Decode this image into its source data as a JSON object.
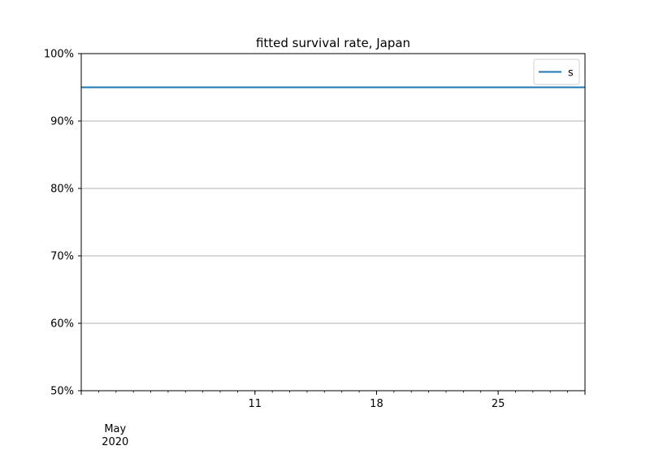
{
  "chart_data": {
    "type": "line",
    "title": "fitted survival rate, Japan",
    "xlabel": "",
    "ylabel": "",
    "x_range": [
      "2020-05-01",
      "2020-05-30"
    ],
    "ylim": [
      0.5,
      1.0
    ],
    "y_ticks": [
      {
        "value": 0.5,
        "label": "50%"
      },
      {
        "value": 0.6,
        "label": "60%"
      },
      {
        "value": 0.7,
        "label": "70%"
      },
      {
        "value": 0.8,
        "label": "80%"
      },
      {
        "value": 0.9,
        "label": "90%"
      },
      {
        "value": 1.0,
        "label": "100%"
      }
    ],
    "x_major_ticks": [
      {
        "date": "2020-05-11",
        "label": "11"
      },
      {
        "date": "2020-05-18",
        "label": "18"
      },
      {
        "date": "2020-05-25",
        "label": "25"
      }
    ],
    "x_period_label": {
      "date": "2020-05-03",
      "month": "May",
      "year": "2020"
    },
    "grid": "horizontal",
    "legend": {
      "position": "top-right"
    },
    "series": [
      {
        "name": "s",
        "color": "#1f77b4",
        "x": [
          "2020-05-01",
          "2020-05-30"
        ],
        "values": [
          0.95,
          0.95
        ]
      }
    ]
  }
}
